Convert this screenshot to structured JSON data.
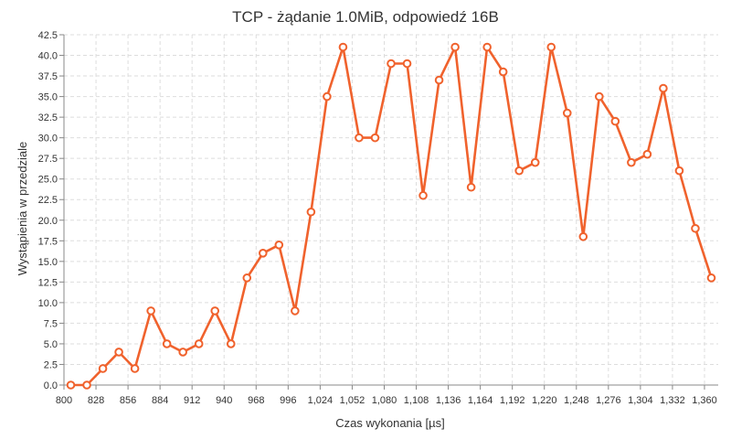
{
  "chart_data": {
    "type": "line",
    "title": "TCP - żądanie 1.0MiB, odpowiedź 16B",
    "xlabel": "Czas wykonania [µs]",
    "ylabel": "Wystąpienia w przedziale",
    "xlim": [
      800,
      1372
    ],
    "ylim": [
      0,
      42.5
    ],
    "x_ticks": [
      800,
      828,
      856,
      884,
      912,
      940,
      968,
      996,
      1024,
      1052,
      1080,
      1108,
      1136,
      1164,
      1192,
      1220,
      1248,
      1276,
      1304,
      1332,
      1360
    ],
    "x_tick_labels": [
      "800",
      "828",
      "856",
      "884",
      "912",
      "940",
      "968",
      "996",
      "1,024",
      "1,052",
      "1,080",
      "1,108",
      "1,136",
      "1,164",
      "1,192",
      "1,220",
      "1,248",
      "1,276",
      "1,304",
      "1,332",
      "1,360"
    ],
    "y_ticks": [
      0,
      2.5,
      5,
      7.5,
      10,
      12.5,
      15,
      17.5,
      20,
      22.5,
      25,
      27.5,
      30,
      32.5,
      35,
      37.5,
      40,
      42.5
    ],
    "y_tick_labels": [
      "0.0",
      "2.5",
      "5.0",
      "7.5",
      "10.0",
      "12.5",
      "15.0",
      "17.5",
      "20.0",
      "22.5",
      "25.0",
      "27.5",
      "30.0",
      "32.5",
      "35.0",
      "37.5",
      "40.0",
      "42.5"
    ],
    "grid": true,
    "legend": "none",
    "series": [
      {
        "color": "#f0622d",
        "x": [
          806,
          820,
          834,
          848,
          862,
          876,
          890,
          904,
          918,
          932,
          946,
          960,
          974,
          988,
          1002,
          1016,
          1030,
          1044,
          1058,
          1072,
          1086,
          1100,
          1114,
          1128,
          1142,
          1156,
          1170,
          1184,
          1198,
          1212,
          1226,
          1240,
          1254,
          1268,
          1282,
          1296,
          1310,
          1324,
          1338,
          1352,
          1366
        ],
        "values": [
          0,
          0,
          2,
          4,
          2,
          9,
          5,
          4,
          5,
          9,
          5,
          13,
          16,
          17,
          9,
          21,
          35,
          41,
          30,
          30,
          39,
          39,
          23,
          37,
          41,
          24,
          41,
          38,
          26,
          27,
          41,
          33,
          18,
          35,
          32,
          27,
          28,
          36,
          26,
          19,
          13
        ]
      }
    ]
  }
}
